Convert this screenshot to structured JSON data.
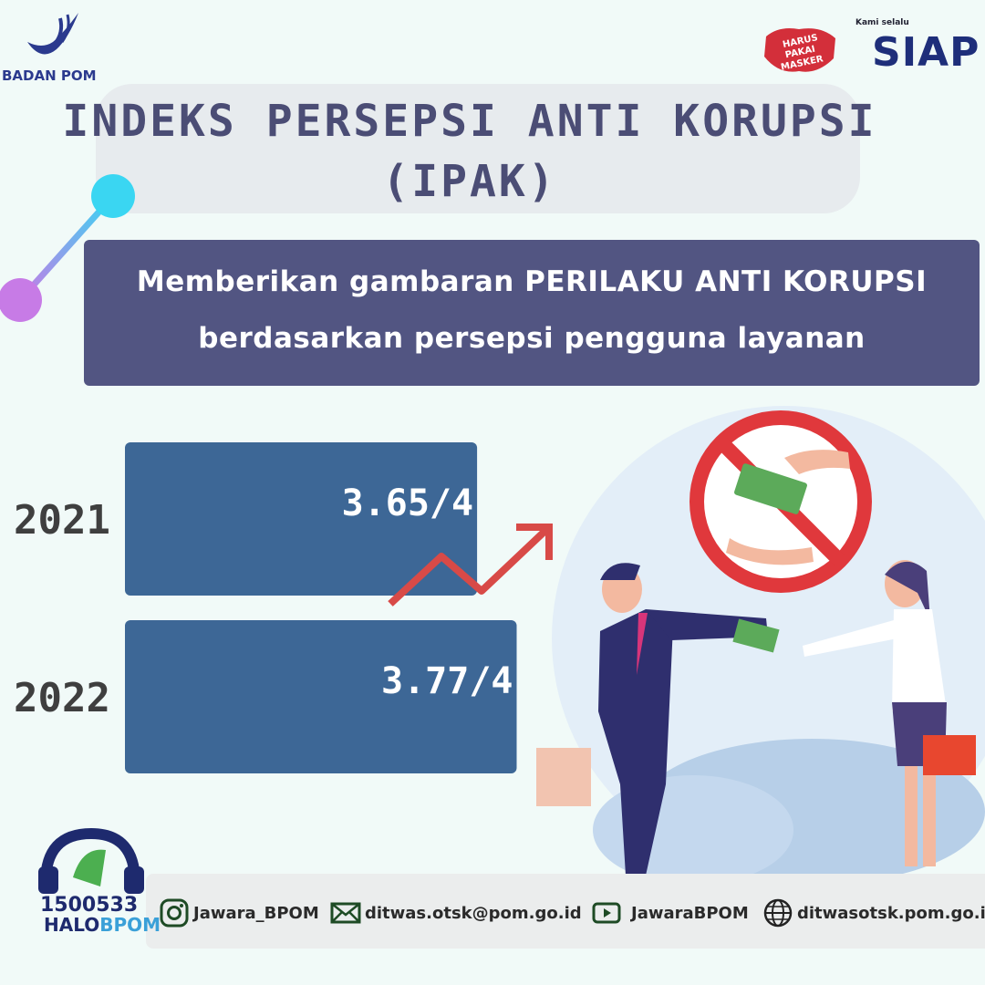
{
  "header": {
    "org_logo_text": "BADAN POM",
    "mask_badge": [
      "HARUS",
      "PAKAI",
      "MASKER"
    ],
    "siap_tagline": "Kami selalu",
    "siap_logo_text": "SIAP"
  },
  "title": {
    "line1": "INDEKS PERSEPSI ANTI KORUPSI",
    "line2": "(IPAK)"
  },
  "subtitle": {
    "line1": "Memberikan gambaran PERILAKU ANTI KORUPSI",
    "line2": "berdasarkan persepsi pengguna layanan"
  },
  "chart_data": {
    "type": "bar",
    "orientation": "horizontal",
    "categories": [
      "2021",
      "2022"
    ],
    "values": [
      3.65,
      3.77
    ],
    "max": 4,
    "value_labels": [
      "3.65/4",
      "3.77/4"
    ],
    "bar_color": "#3d6796",
    "trend_arrow_color": "#d84a47"
  },
  "footer": {
    "hotline_number": "1500533",
    "hotline_name_a": "HALO",
    "hotline_name_b": "BPOM",
    "contacts": [
      {
        "icon": "instagram-icon",
        "text": "Jawara_BPOM"
      },
      {
        "icon": "email-icon",
        "text": "ditwas.otsk@pom.go.id"
      },
      {
        "icon": "youtube-icon",
        "text": "JawaraBPOM"
      },
      {
        "icon": "globe-icon",
        "text": "ditwasotsk.pom.go.id"
      }
    ]
  }
}
